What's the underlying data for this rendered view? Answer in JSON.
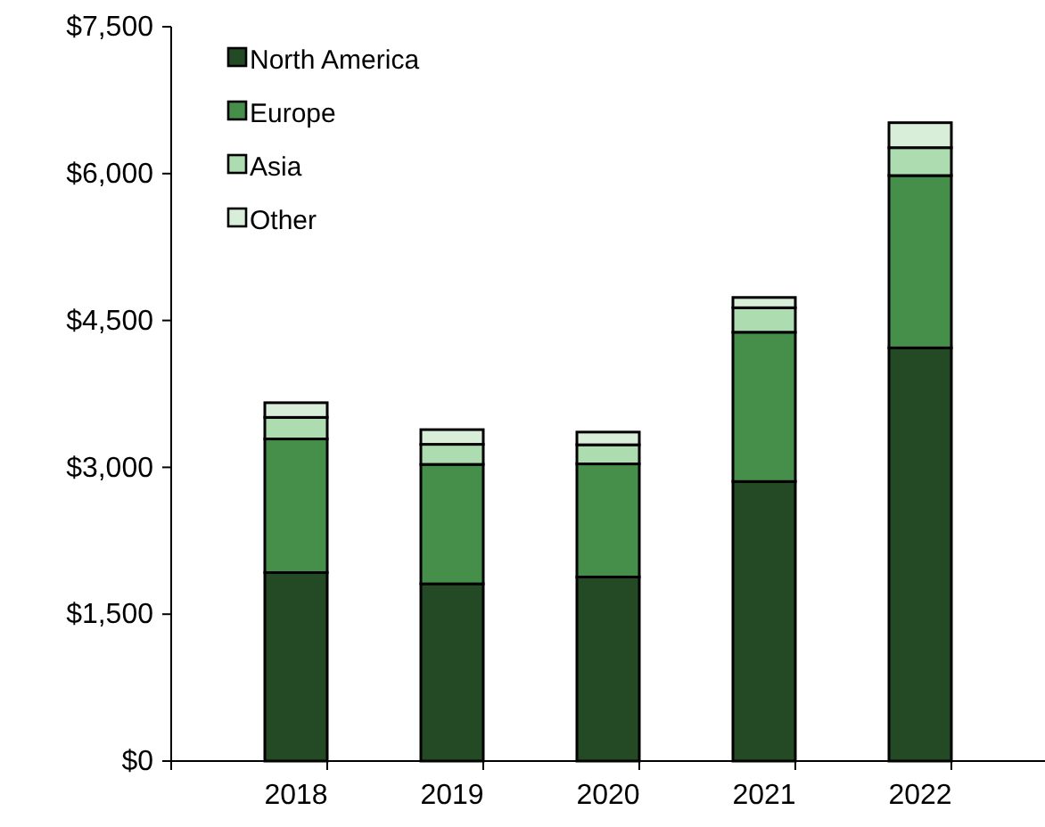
{
  "chart_data": {
    "type": "bar",
    "stacked": true,
    "categories": [
      "2018",
      "2019",
      "2020",
      "2021",
      "2022"
    ],
    "series": [
      {
        "name": "North America",
        "color": "#234a24",
        "values": [
          1925,
          1810,
          1880,
          2855,
          4220
        ]
      },
      {
        "name": "Europe",
        "color": "#468f4a",
        "values": [
          1365,
          1220,
          1155,
          1525,
          1760
        ]
      },
      {
        "name": "Asia",
        "color": "#acdcb0",
        "values": [
          220,
          205,
          195,
          250,
          285
        ]
      },
      {
        "name": "Other",
        "color": "#d9eed9",
        "values": [
          150,
          150,
          130,
          105,
          255
        ]
      }
    ],
    "ylim": [
      0,
      7500
    ],
    "yticks": [
      {
        "value": 0,
        "label": "$0"
      },
      {
        "value": 1500,
        "label": "$1,500"
      },
      {
        "value": 3000,
        "label": "$3,000"
      },
      {
        "value": 4500,
        "label": "$4,500"
      },
      {
        "value": 6000,
        "label": "$6,000"
      },
      {
        "value": 7500,
        "label": "$7,500"
      }
    ],
    "grid": false,
    "legend": "top left"
  }
}
